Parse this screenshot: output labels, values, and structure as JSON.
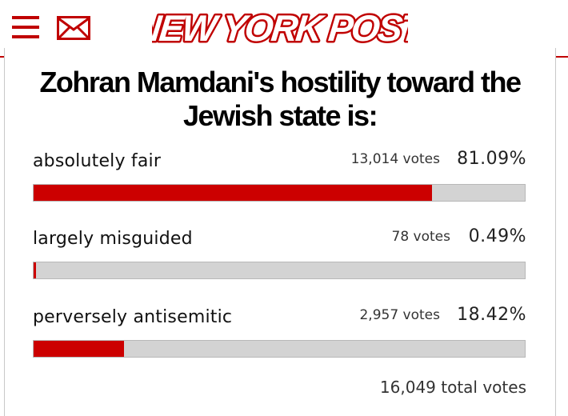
{
  "header": {
    "logo_text": "NEW YORK POST",
    "brand_color": "#c00000",
    "icons": [
      "menu-icon",
      "mail-icon"
    ]
  },
  "poll": {
    "question": "Zohran Mamdani's hostility toward the Jewish state is:",
    "options": [
      {
        "label": "absolutely fair",
        "votes": "13,014 votes",
        "percent": "81.09%",
        "fraction": 0.8109
      },
      {
        "label": "largely misguided",
        "votes": "78 votes",
        "percent": "0.49%",
        "fraction": 0.0049
      },
      {
        "label": "perversely antisemitic",
        "votes": "2,957 votes",
        "percent": "18.42%",
        "fraction": 0.1842
      }
    ],
    "total": "16,049 total votes",
    "bar_fill_color": "#cc0000",
    "bar_track_color": "#d3d3d3"
  }
}
